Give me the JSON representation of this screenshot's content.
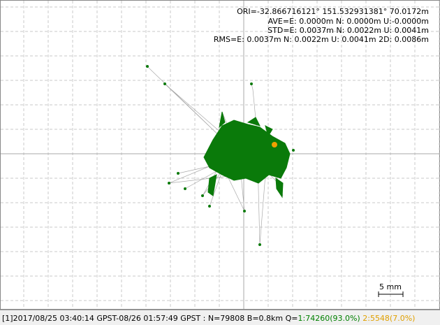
{
  "header": {
    "lines": [
      "ORI=-32.866716121° 151.532931381° 70.0172m",
      "AVE=E: 0.0000m N: 0.0000m U:-0.0000m",
      "STD=E: 0.0037m N: 0.0022m U: 0.0041m",
      "RMS=E: 0.0037m N: 0.0022m U: 0.0041m 2D: 0.0086m"
    ]
  },
  "scale": {
    "label": "5 mm"
  },
  "status": {
    "prefix": "[1]2017/08/25 03:40:14 GPST-08/26 01:57:49 GPST : N=79808 B=0.8km Q=",
    "q1": "1:74260(93.0%)",
    "q2": "2:5548(7.0%)"
  }
}
